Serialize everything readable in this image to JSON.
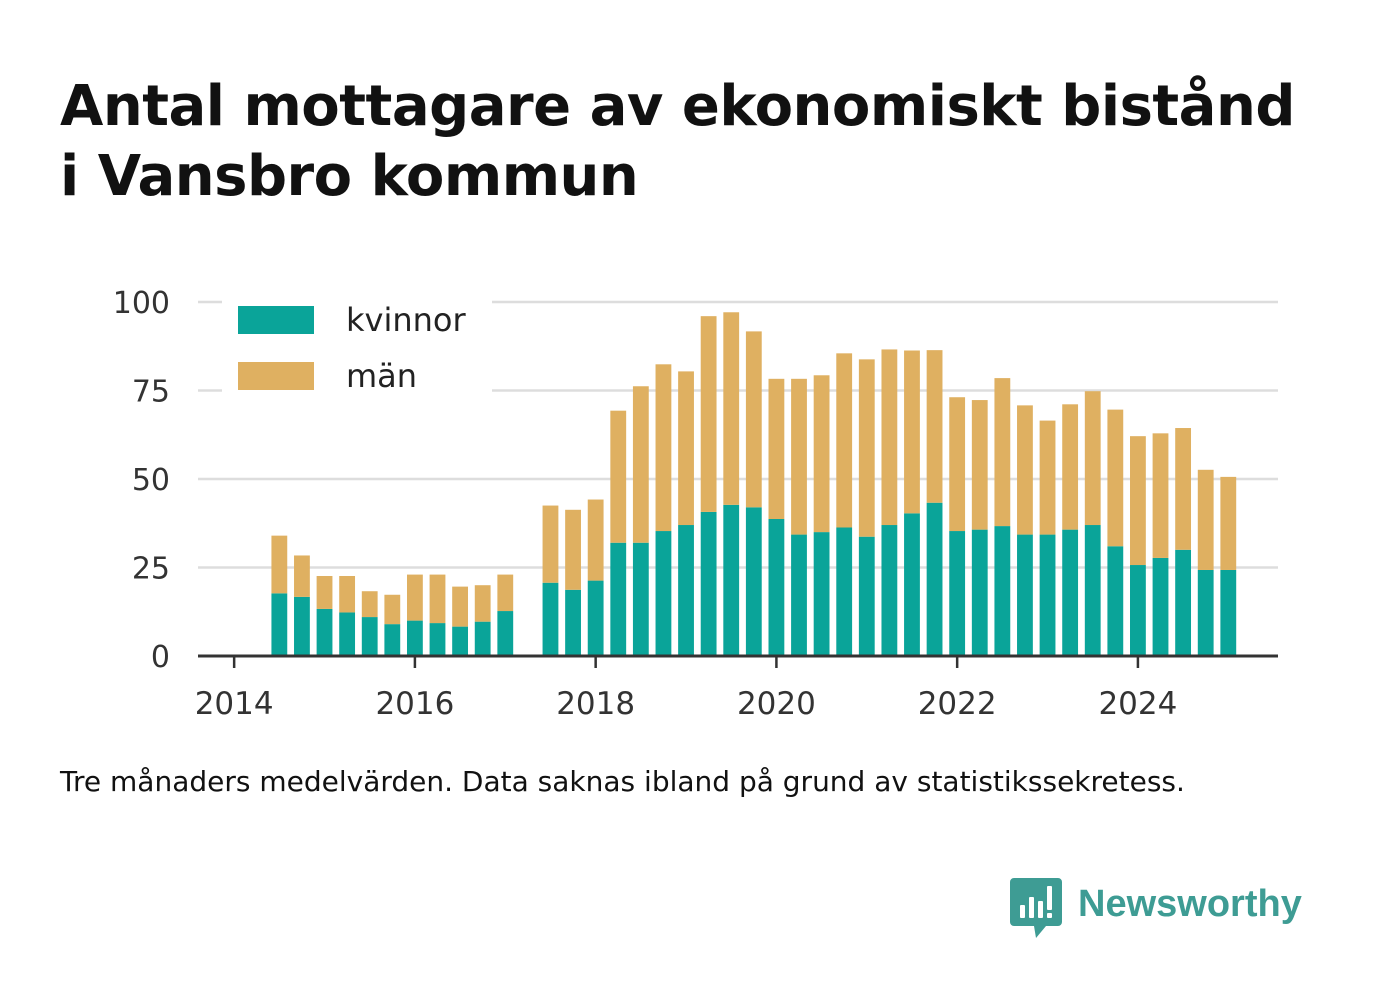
{
  "title_lines": [
    "Antal mottagare av ekonomiskt bistånd",
    "i Vansbro kommun"
  ],
  "note": "Tre månaders medelvärden. Data saknas ibland på grund av statistikssekretess.",
  "brand": {
    "name": "Newsworthy",
    "icon": "bar-chart-speech-bubble-icon",
    "color": "#3e9c94"
  },
  "chart_data": {
    "type": "bar",
    "stacked": true,
    "x_unit": "year",
    "x_ticks": [
      2014,
      2016,
      2018,
      2020,
      2022,
      2024
    ],
    "x_range": [
      2013.6,
      2025.55
    ],
    "y_ticks": [
      0,
      25,
      50,
      75,
      100
    ],
    "ylim": [
      0,
      100
    ],
    "grid": "horizontal",
    "legend_position": "top-left",
    "bar_period_years": 0.25,
    "x": [
      2014.5,
      2014.75,
      2015.0,
      2015.25,
      2015.5,
      2015.75,
      2016.0,
      2016.25,
      2016.5,
      2016.75,
      2017.0,
      2017.5,
      2017.75,
      2018.0,
      2018.25,
      2018.5,
      2018.75,
      2019.0,
      2019.25,
      2019.5,
      2019.75,
      2020.0,
      2020.25,
      2020.5,
      2020.75,
      2021.0,
      2021.25,
      2021.5,
      2021.75,
      2022.0,
      2022.25,
      2022.5,
      2022.75,
      2023.0,
      2023.25,
      2023.5,
      2023.75,
      2024.0,
      2024.25,
      2024.5,
      2024.75,
      2025.0
    ],
    "series": [
      {
        "name": "kvinnor",
        "color": "#0aa499",
        "values": [
          17.7,
          16.7,
          13.3,
          12.3,
          11.0,
          9.0,
          10.0,
          9.3,
          8.3,
          9.7,
          12.7,
          20.7,
          18.7,
          21.3,
          32.0,
          32.0,
          35.3,
          37.0,
          40.7,
          42.7,
          42.0,
          38.7,
          34.3,
          35.0,
          36.3,
          33.7,
          37.0,
          40.3,
          43.3,
          35.3,
          35.7,
          36.7,
          34.3,
          34.3,
          35.7,
          37.0,
          31.0,
          25.7,
          27.7,
          30.0,
          24.3,
          24.3
        ]
      },
      {
        "name": "män",
        "color": "#dfb061",
        "values": [
          16.3,
          11.7,
          9.3,
          10.3,
          7.3,
          8.3,
          13.0,
          13.7,
          11.3,
          10.3,
          10.3,
          21.8,
          22.6,
          22.9,
          37.3,
          44.2,
          47.1,
          43.4,
          55.3,
          54.4,
          49.7,
          39.6,
          44.0,
          44.3,
          49.2,
          50.1,
          49.6,
          46.0,
          43.1,
          37.8,
          36.6,
          41.8,
          36.5,
          32.2,
          35.4,
          37.8,
          38.6,
          36.4,
          35.2,
          34.4,
          28.3,
          26.3
        ]
      }
    ]
  }
}
